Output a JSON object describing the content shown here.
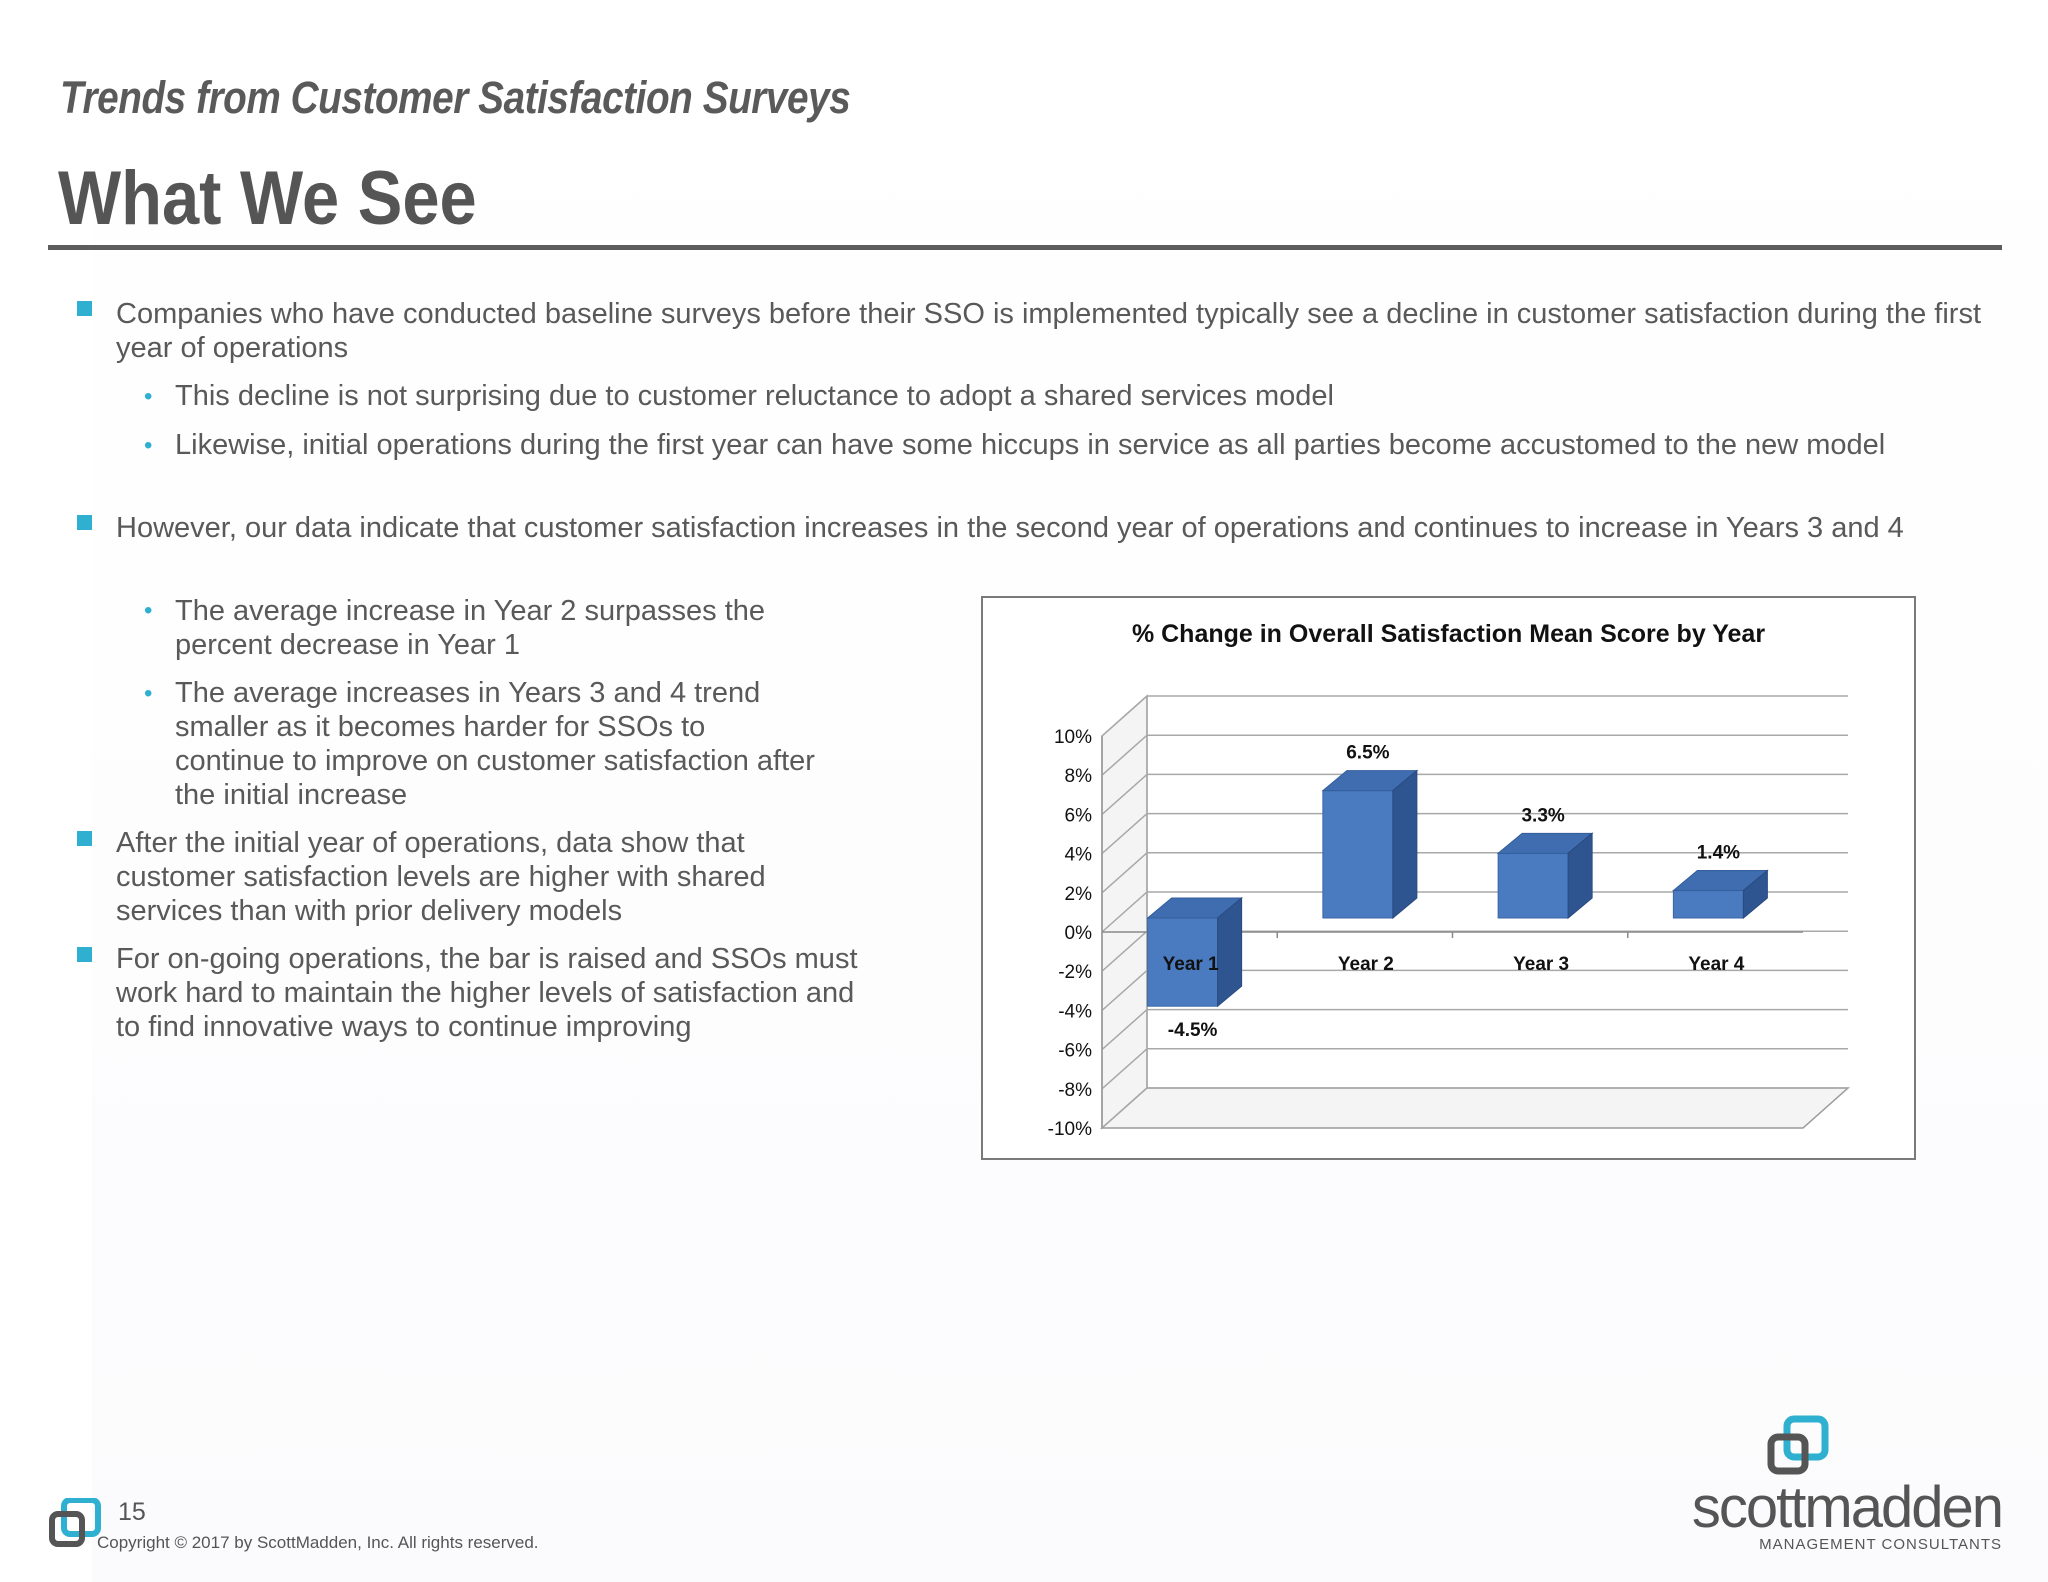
{
  "header": {
    "kicker": "Trends from Customer Satisfaction Surveys",
    "title": "What We See"
  },
  "bullets": [
    {
      "text": "Companies who have conducted baseline surveys before their SSO is implemented typically see a decline in customer satisfaction during the first year of operations",
      "subs": [
        "This decline is not surprising due to customer reluctance to adopt a shared services model",
        "Likewise, initial operations during the first year can have some hiccups in service as all parties become accustomed to the new model"
      ]
    },
    {
      "text": "However, our data indicate that customer satisfaction increases in the second year of operations and continues to increase in Years 3 and 4",
      "subs": [
        "The average increase in Year 2 surpasses the percent decrease in Year 1",
        "The average increases in Years 3 and 4 trend smaller as it becomes harder for SSOs to continue to improve on customer satisfaction after the initial increase"
      ]
    },
    {
      "text": "After the initial year of operations, data show that customer satisfaction levels are higher with shared services than with prior delivery models"
    },
    {
      "text": "For on-going operations, the bar is raised and SSOs must work hard to maintain the higher levels of satisfaction and to find innovative ways to continue improving"
    }
  ],
  "chart_data": {
    "type": "bar",
    "title": "% Change in Overall Satisfaction Mean Score by Year",
    "categories": [
      "Year 1",
      "Year 2",
      "Year 3",
      "Year 4"
    ],
    "values": [
      -4.5,
      6.5,
      3.3,
      1.4
    ],
    "data_labels": [
      "-4.5%",
      "6.5%",
      "3.3%",
      "1.4%"
    ],
    "y_ticks": [
      "10%",
      "8%",
      "6%",
      "4%",
      "2%",
      "0%",
      "-2%",
      "-4%",
      "-6%",
      "-8%",
      "-10%"
    ],
    "ylim": [
      -10,
      10
    ],
    "grid": true,
    "style": "3d",
    "bar_color": "#4a7abf"
  },
  "footer": {
    "page_number": "15",
    "copyright": "Copyright © 2017 by ScottMadden, Inc. All rights reserved.",
    "brand": "scottmadden",
    "tagline": "MANAGEMENT CONSULTANTS"
  }
}
